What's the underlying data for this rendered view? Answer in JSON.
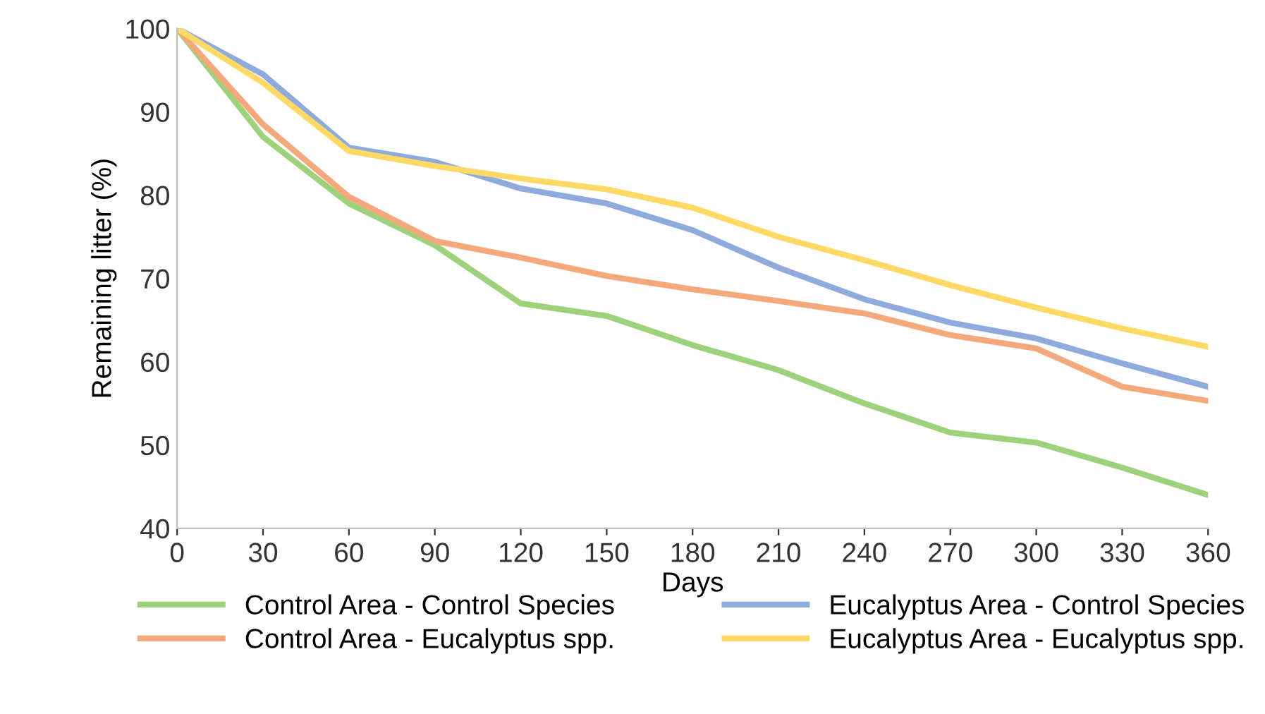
{
  "chart_data": {
    "type": "line",
    "xlabel": "Days",
    "ylabel": "Remaining litter (%)",
    "x": [
      0,
      30,
      60,
      90,
      120,
      150,
      180,
      210,
      240,
      270,
      300,
      330,
      360
    ],
    "xlim": [
      0,
      360
    ],
    "xticks": [
      0,
      30,
      60,
      90,
      120,
      150,
      180,
      210,
      240,
      270,
      300,
      330,
      360
    ],
    "ylim": [
      40,
      100
    ],
    "yticks": [
      40,
      50,
      60,
      70,
      80,
      90,
      100
    ],
    "grid": false,
    "legend": "bottom",
    "marker": "none",
    "line_style": "solid",
    "series": [
      {
        "name": "Control Area - Control Species",
        "color": "#9dd17c",
        "values": [
          100,
          87,
          79,
          74,
          67,
          65.5,
          62,
          59,
          55,
          51.5,
          50.3,
          47.3,
          44
        ]
      },
      {
        "name": "Control Area - Eucalyptus spp.",
        "color": "#f4a97c",
        "values": [
          100,
          88.5,
          79.8,
          74.5,
          72.5,
          70.3,
          68.7,
          67.3,
          65.8,
          63.2,
          61.6,
          57,
          55.3
        ]
      },
      {
        "name": "Eucalyptus Area - Control Species",
        "color": "#8faadc",
        "values": [
          100,
          94.5,
          85.7,
          84,
          80.8,
          79,
          75.8,
          71.3,
          67.5,
          64.7,
          62.8,
          59.8,
          57
        ]
      },
      {
        "name": "Eucalyptus Area - Eucalyptus spp.",
        "color": "#ffd966",
        "values": [
          100,
          93.5,
          85.3,
          83.5,
          82,
          80.7,
          78.5,
          75,
          72.2,
          69.2,
          66.5,
          64,
          61.8
        ]
      }
    ]
  }
}
